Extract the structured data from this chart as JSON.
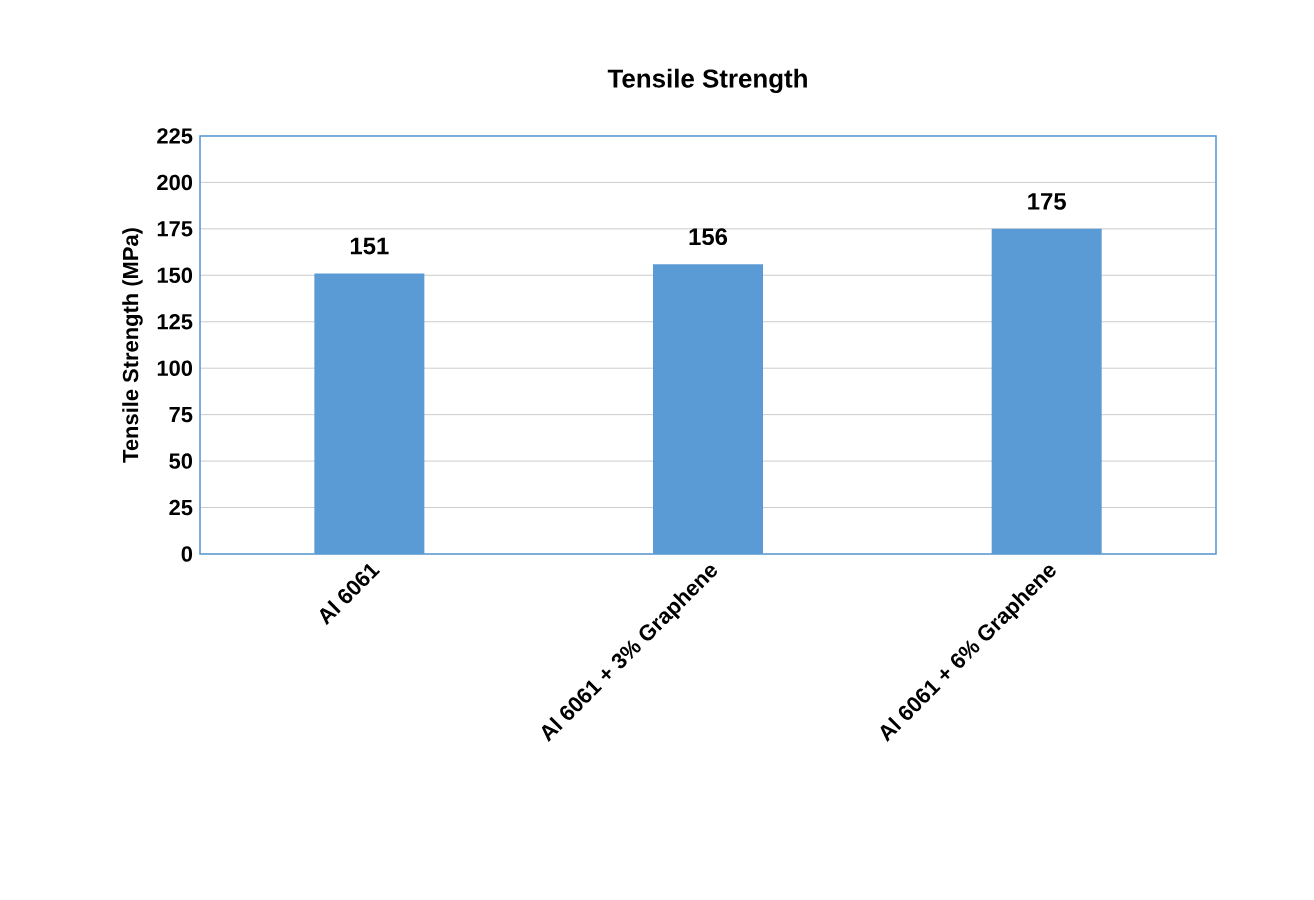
{
  "chart_data": {
    "type": "bar",
    "title": "Tensile Strength",
    "ylabel": "Tensile Strength (MPa)",
    "categories": [
      "Al 6061",
      "Al 6061 + 3% Graphene",
      "Al 6061 + 6% Graphene"
    ],
    "values": [
      151,
      156,
      175
    ],
    "color": "#5b9bd5",
    "data_labels": true,
    "ylim": [
      0,
      225
    ],
    "yticks": [
      0,
      25,
      50,
      75,
      100,
      125,
      150,
      175,
      200,
      225
    ],
    "grid": "y"
  }
}
